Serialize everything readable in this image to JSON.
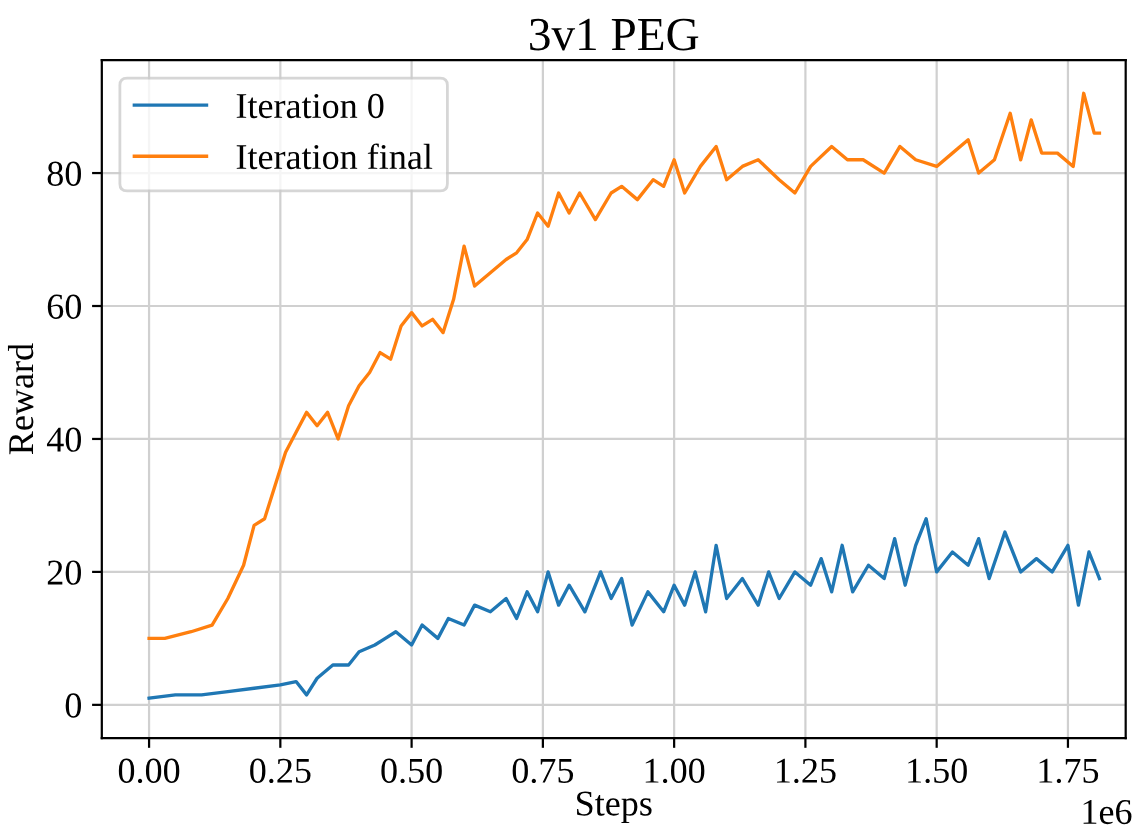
{
  "chart_data": {
    "type": "line",
    "title": "3v1 PEG",
    "xlabel": "Steps",
    "ylabel": "Reward",
    "annotations": [
      "1e6"
    ],
    "xlim": [
      -0.09,
      1.86
    ],
    "ylim": [
      -5,
      97
    ],
    "xticks": [
      {
        "value": 0,
        "label": "0.00"
      },
      0.25,
      {
        "value": 0.5,
        "label": "0.50"
      },
      0.75,
      {
        "value": 1,
        "label": "1.00"
      },
      1.25,
      {
        "value": 1.5,
        "label": "1.50"
      },
      1.75
    ],
    "yticks": [
      0,
      20,
      40,
      60,
      80
    ],
    "grid": true,
    "legend": "top left",
    "series": [
      {
        "name": "Iteration 0",
        "color": "#1f77b4",
        "x": [
          0,
          0.05,
          0.1,
          0.15,
          0.2,
          0.25,
          0.28,
          0.3,
          0.32,
          0.35,
          0.38,
          0.4,
          0.43,
          0.45,
          0.47,
          0.5,
          0.52,
          0.55,
          0.57,
          0.6,
          0.62,
          0.65,
          0.68,
          0.7,
          0.72,
          0.74,
          0.76,
          0.78,
          0.8,
          0.83,
          0.86,
          0.88,
          0.9,
          0.92,
          0.95,
          0.98,
          1.0,
          1.02,
          1.04,
          1.06,
          1.08,
          1.1,
          1.13,
          1.16,
          1.18,
          1.2,
          1.23,
          1.26,
          1.28,
          1.3,
          1.32,
          1.34,
          1.37,
          1.4,
          1.42,
          1.44,
          1.46,
          1.48,
          1.5,
          1.53,
          1.56,
          1.58,
          1.6,
          1.63,
          1.66,
          1.69,
          1.72,
          1.75,
          1.77,
          1.79,
          1.81
        ],
        "values": [
          1,
          1.5,
          1.5,
          2,
          2.5,
          3,
          3.5,
          1.5,
          4,
          6,
          6,
          8,
          9,
          10,
          11,
          9,
          12,
          10,
          13,
          12,
          15,
          14,
          16,
          13,
          17,
          14,
          20,
          15,
          18,
          14,
          20,
          16,
          19,
          12,
          17,
          14,
          18,
          15,
          20,
          14,
          24,
          16,
          19,
          15,
          20,
          16,
          20,
          18,
          22,
          17,
          24,
          17,
          21,
          19,
          25,
          18,
          24,
          28,
          20,
          23,
          21,
          25,
          19,
          26,
          20,
          22,
          20,
          24,
          15,
          23,
          19
        ]
      },
      {
        "name": "Iteration final",
        "color": "#ff7f0e",
        "x": [
          0,
          0.03,
          0.08,
          0.12,
          0.15,
          0.18,
          0.2,
          0.22,
          0.24,
          0.26,
          0.28,
          0.3,
          0.32,
          0.34,
          0.36,
          0.38,
          0.4,
          0.42,
          0.44,
          0.46,
          0.48,
          0.5,
          0.52,
          0.54,
          0.56,
          0.58,
          0.6,
          0.62,
          0.65,
          0.68,
          0.7,
          0.72,
          0.74,
          0.76,
          0.78,
          0.8,
          0.82,
          0.85,
          0.88,
          0.9,
          0.93,
          0.96,
          0.98,
          1.0,
          1.02,
          1.05,
          1.08,
          1.1,
          1.13,
          1.16,
          1.2,
          1.23,
          1.26,
          1.3,
          1.33,
          1.36,
          1.4,
          1.43,
          1.46,
          1.5,
          1.53,
          1.56,
          1.58,
          1.61,
          1.64,
          1.66,
          1.68,
          1.7,
          1.73,
          1.76,
          1.78,
          1.8,
          1.81
        ],
        "values": [
          10,
          10,
          11,
          12,
          16,
          21,
          27,
          28,
          33,
          38,
          41,
          44,
          42,
          44,
          40,
          45,
          48,
          50,
          53,
          52,
          57,
          59,
          57,
          58,
          56,
          61,
          69,
          63,
          65,
          67,
          68,
          70,
          74,
          72,
          77,
          74,
          77,
          73,
          77,
          78,
          76,
          79,
          78,
          82,
          77,
          81,
          84,
          79,
          81,
          82,
          79,
          77,
          81,
          84,
          82,
          82,
          80,
          84,
          82,
          81,
          83,
          85,
          80,
          82,
          89,
          82,
          88,
          83,
          83,
          81,
          92,
          86,
          86
        ]
      }
    ]
  }
}
